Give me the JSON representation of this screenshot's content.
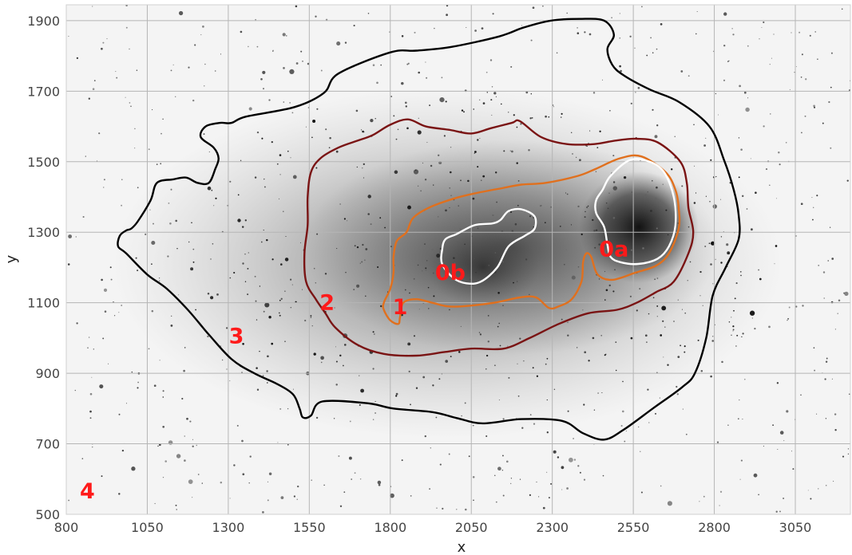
{
  "chart_data": {
    "type": "scatter",
    "title": "",
    "xlabel": "x",
    "ylabel": "y",
    "xlim": [
      800,
      3220
    ],
    "ylim": [
      500,
      1945
    ],
    "x_ticks": [
      800,
      1050,
      1300,
      1550,
      1800,
      2050,
      2300,
      2550,
      2800,
      3050
    ],
    "y_ticks": [
      500,
      700,
      900,
      1100,
      1300,
      1500,
      1700,
      1900
    ],
    "grid": true,
    "background": "greyscale star-field image (inverted)",
    "contours": [
      {
        "name": "3",
        "color": "#000000",
        "points": [
          [
            1355,
            1628
          ],
          [
            1505,
            1655
          ],
          [
            1595,
            1695
          ],
          [
            1640,
            1750
          ],
          [
            1800,
            1810
          ],
          [
            1880,
            1815
          ],
          [
            1985,
            1825
          ],
          [
            2135,
            1855
          ],
          [
            2210,
            1880
          ],
          [
            2295,
            1900
          ],
          [
            2385,
            1905
          ],
          [
            2460,
            1900
          ],
          [
            2490,
            1860
          ],
          [
            2470,
            1820
          ],
          [
            2485,
            1775
          ],
          [
            2520,
            1745
          ],
          [
            2600,
            1705
          ],
          [
            2690,
            1670
          ],
          [
            2785,
            1600
          ],
          [
            2830,
            1505
          ],
          [
            2860,
            1420
          ],
          [
            2875,
            1350
          ],
          [
            2875,
            1280
          ],
          [
            2835,
            1200
          ],
          [
            2795,
            1120
          ],
          [
            2775,
            1000
          ],
          [
            2740,
            900
          ],
          [
            2700,
            860
          ],
          [
            2610,
            800
          ],
          [
            2520,
            740
          ],
          [
            2460,
            712
          ],
          [
            2395,
            730
          ],
          [
            2330,
            765
          ],
          [
            2205,
            770
          ],
          [
            2085,
            758
          ],
          [
            2005,
            773
          ],
          [
            1930,
            790
          ],
          [
            1810,
            800
          ],
          [
            1730,
            815
          ],
          [
            1590,
            820
          ],
          [
            1555,
            780
          ],
          [
            1530,
            775
          ],
          [
            1520,
            800
          ],
          [
            1500,
            840
          ],
          [
            1450,
            870
          ],
          [
            1380,
            900
          ],
          [
            1310,
            940
          ],
          [
            1240,
            1010
          ],
          [
            1175,
            1080
          ],
          [
            1110,
            1140
          ],
          [
            1050,
            1180
          ],
          [
            985,
            1240
          ],
          [
            960,
            1260
          ],
          [
            965,
            1290
          ],
          [
            985,
            1305
          ],
          [
            1000,
            1310
          ],
          [
            1020,
            1330
          ],
          [
            1060,
            1390
          ],
          [
            1080,
            1440
          ],
          [
            1130,
            1450
          ],
          [
            1170,
            1455
          ],
          [
            1205,
            1440
          ],
          [
            1240,
            1440
          ],
          [
            1260,
            1480
          ],
          [
            1270,
            1510
          ],
          [
            1255,
            1540
          ],
          [
            1215,
            1570
          ],
          [
            1230,
            1600
          ],
          [
            1275,
            1610
          ],
          [
            1310,
            1610
          ]
        ]
      },
      {
        "name": "2",
        "color": "#7a1414",
        "points": [
          [
            1745,
            1575
          ],
          [
            1800,
            1605
          ],
          [
            1855,
            1620
          ],
          [
            1910,
            1600
          ],
          [
            1985,
            1590
          ],
          [
            2050,
            1580
          ],
          [
            2110,
            1595
          ],
          [
            2175,
            1610
          ],
          [
            2200,
            1615
          ],
          [
            2265,
            1570
          ],
          [
            2345,
            1550
          ],
          [
            2430,
            1550
          ],
          [
            2495,
            1560
          ],
          [
            2560,
            1565
          ],
          [
            2625,
            1555
          ],
          [
            2695,
            1500
          ],
          [
            2715,
            1440
          ],
          [
            2720,
            1370
          ],
          [
            2735,
            1300
          ],
          [
            2720,
            1240
          ],
          [
            2675,
            1160
          ],
          [
            2620,
            1130
          ],
          [
            2560,
            1100
          ],
          [
            2500,
            1080
          ],
          [
            2410,
            1070
          ],
          [
            2320,
            1040
          ],
          [
            2230,
            1000
          ],
          [
            2150,
            970
          ],
          [
            2050,
            970
          ],
          [
            1965,
            960
          ],
          [
            1880,
            950
          ],
          [
            1780,
            955
          ],
          [
            1700,
            980
          ],
          [
            1630,
            1030
          ],
          [
            1600,
            1070
          ],
          [
            1570,
            1110
          ],
          [
            1540,
            1160
          ],
          [
            1535,
            1240
          ],
          [
            1545,
            1320
          ],
          [
            1545,
            1400
          ],
          [
            1555,
            1470
          ],
          [
            1585,
            1510
          ],
          [
            1640,
            1540
          ],
          [
            1700,
            1560
          ]
        ]
      },
      {
        "name": "1",
        "color": "#e0701e",
        "points": [
          [
            1920,
            1370
          ],
          [
            1995,
            1395
          ],
          [
            2060,
            1410
          ],
          [
            2145,
            1425
          ],
          [
            2205,
            1435
          ],
          [
            2280,
            1440
          ],
          [
            2380,
            1460
          ],
          [
            2435,
            1480
          ],
          [
            2510,
            1510
          ],
          [
            2575,
            1515
          ],
          [
            2650,
            1470
          ],
          [
            2680,
            1420
          ],
          [
            2690,
            1370
          ],
          [
            2690,
            1310
          ],
          [
            2660,
            1240
          ],
          [
            2620,
            1205
          ],
          [
            2555,
            1185
          ],
          [
            2485,
            1165
          ],
          [
            2440,
            1180
          ],
          [
            2420,
            1230
          ],
          [
            2405,
            1240
          ],
          [
            2395,
            1215
          ],
          [
            2390,
            1160
          ],
          [
            2360,
            1110
          ],
          [
            2320,
            1090
          ],
          [
            2290,
            1085
          ],
          [
            2250,
            1115
          ],
          [
            2200,
            1115
          ],
          [
            2120,
            1100
          ],
          [
            2025,
            1090
          ],
          [
            1975,
            1090
          ],
          [
            1930,
            1100
          ],
          [
            1880,
            1110
          ],
          [
            1840,
            1100
          ],
          [
            1830,
            1060
          ],
          [
            1825,
            1040
          ],
          [
            1800,
            1050
          ],
          [
            1780,
            1080
          ],
          [
            1780,
            1100
          ],
          [
            1800,
            1140
          ],
          [
            1810,
            1185
          ],
          [
            1810,
            1230
          ],
          [
            1820,
            1275
          ],
          [
            1850,
            1300
          ],
          [
            1870,
            1340
          ]
        ]
      },
      {
        "name": "0b",
        "color": "#ffffff",
        "points": [
          [
            2005,
            1295
          ],
          [
            2060,
            1320
          ],
          [
            2115,
            1325
          ],
          [
            2140,
            1335
          ],
          [
            2165,
            1360
          ],
          [
            2205,
            1365
          ],
          [
            2245,
            1345
          ],
          [
            2245,
            1310
          ],
          [
            2215,
            1290
          ],
          [
            2165,
            1260
          ],
          [
            2130,
            1200
          ],
          [
            2080,
            1160
          ],
          [
            2035,
            1155
          ],
          [
            1995,
            1170
          ],
          [
            1960,
            1210
          ],
          [
            1960,
            1250
          ],
          [
            1970,
            1280
          ]
        ]
      },
      {
        "name": "0a",
        "color": "#ffffff",
        "points": [
          [
            2480,
            1460
          ],
          [
            2540,
            1505
          ],
          [
            2600,
            1500
          ],
          [
            2645,
            1470
          ],
          [
            2675,
            1400
          ],
          [
            2680,
            1320
          ],
          [
            2660,
            1260
          ],
          [
            2625,
            1225
          ],
          [
            2565,
            1210
          ],
          [
            2510,
            1215
          ],
          [
            2480,
            1230
          ],
          [
            2470,
            1265
          ],
          [
            2460,
            1315
          ],
          [
            2435,
            1355
          ],
          [
            2435,
            1390
          ],
          [
            2455,
            1420
          ]
        ]
      }
    ],
    "annotations": [
      {
        "text": "0a",
        "x": 2490,
        "y": 1232,
        "color": "#ff1a1a"
      },
      {
        "text": "0b",
        "x": 1985,
        "y": 1165,
        "color": "#ff1a1a"
      },
      {
        "text": "1",
        "x": 1830,
        "y": 1068,
        "color": "#ff1a1a"
      },
      {
        "text": "2",
        "x": 1605,
        "y": 1080,
        "color": "#ff1a1a"
      },
      {
        "text": "3",
        "x": 1325,
        "y": 985,
        "color": "#ff1a1a"
      },
      {
        "text": "4",
        "x": 865,
        "y": 545,
        "color": "#ff1a1a"
      }
    ]
  }
}
